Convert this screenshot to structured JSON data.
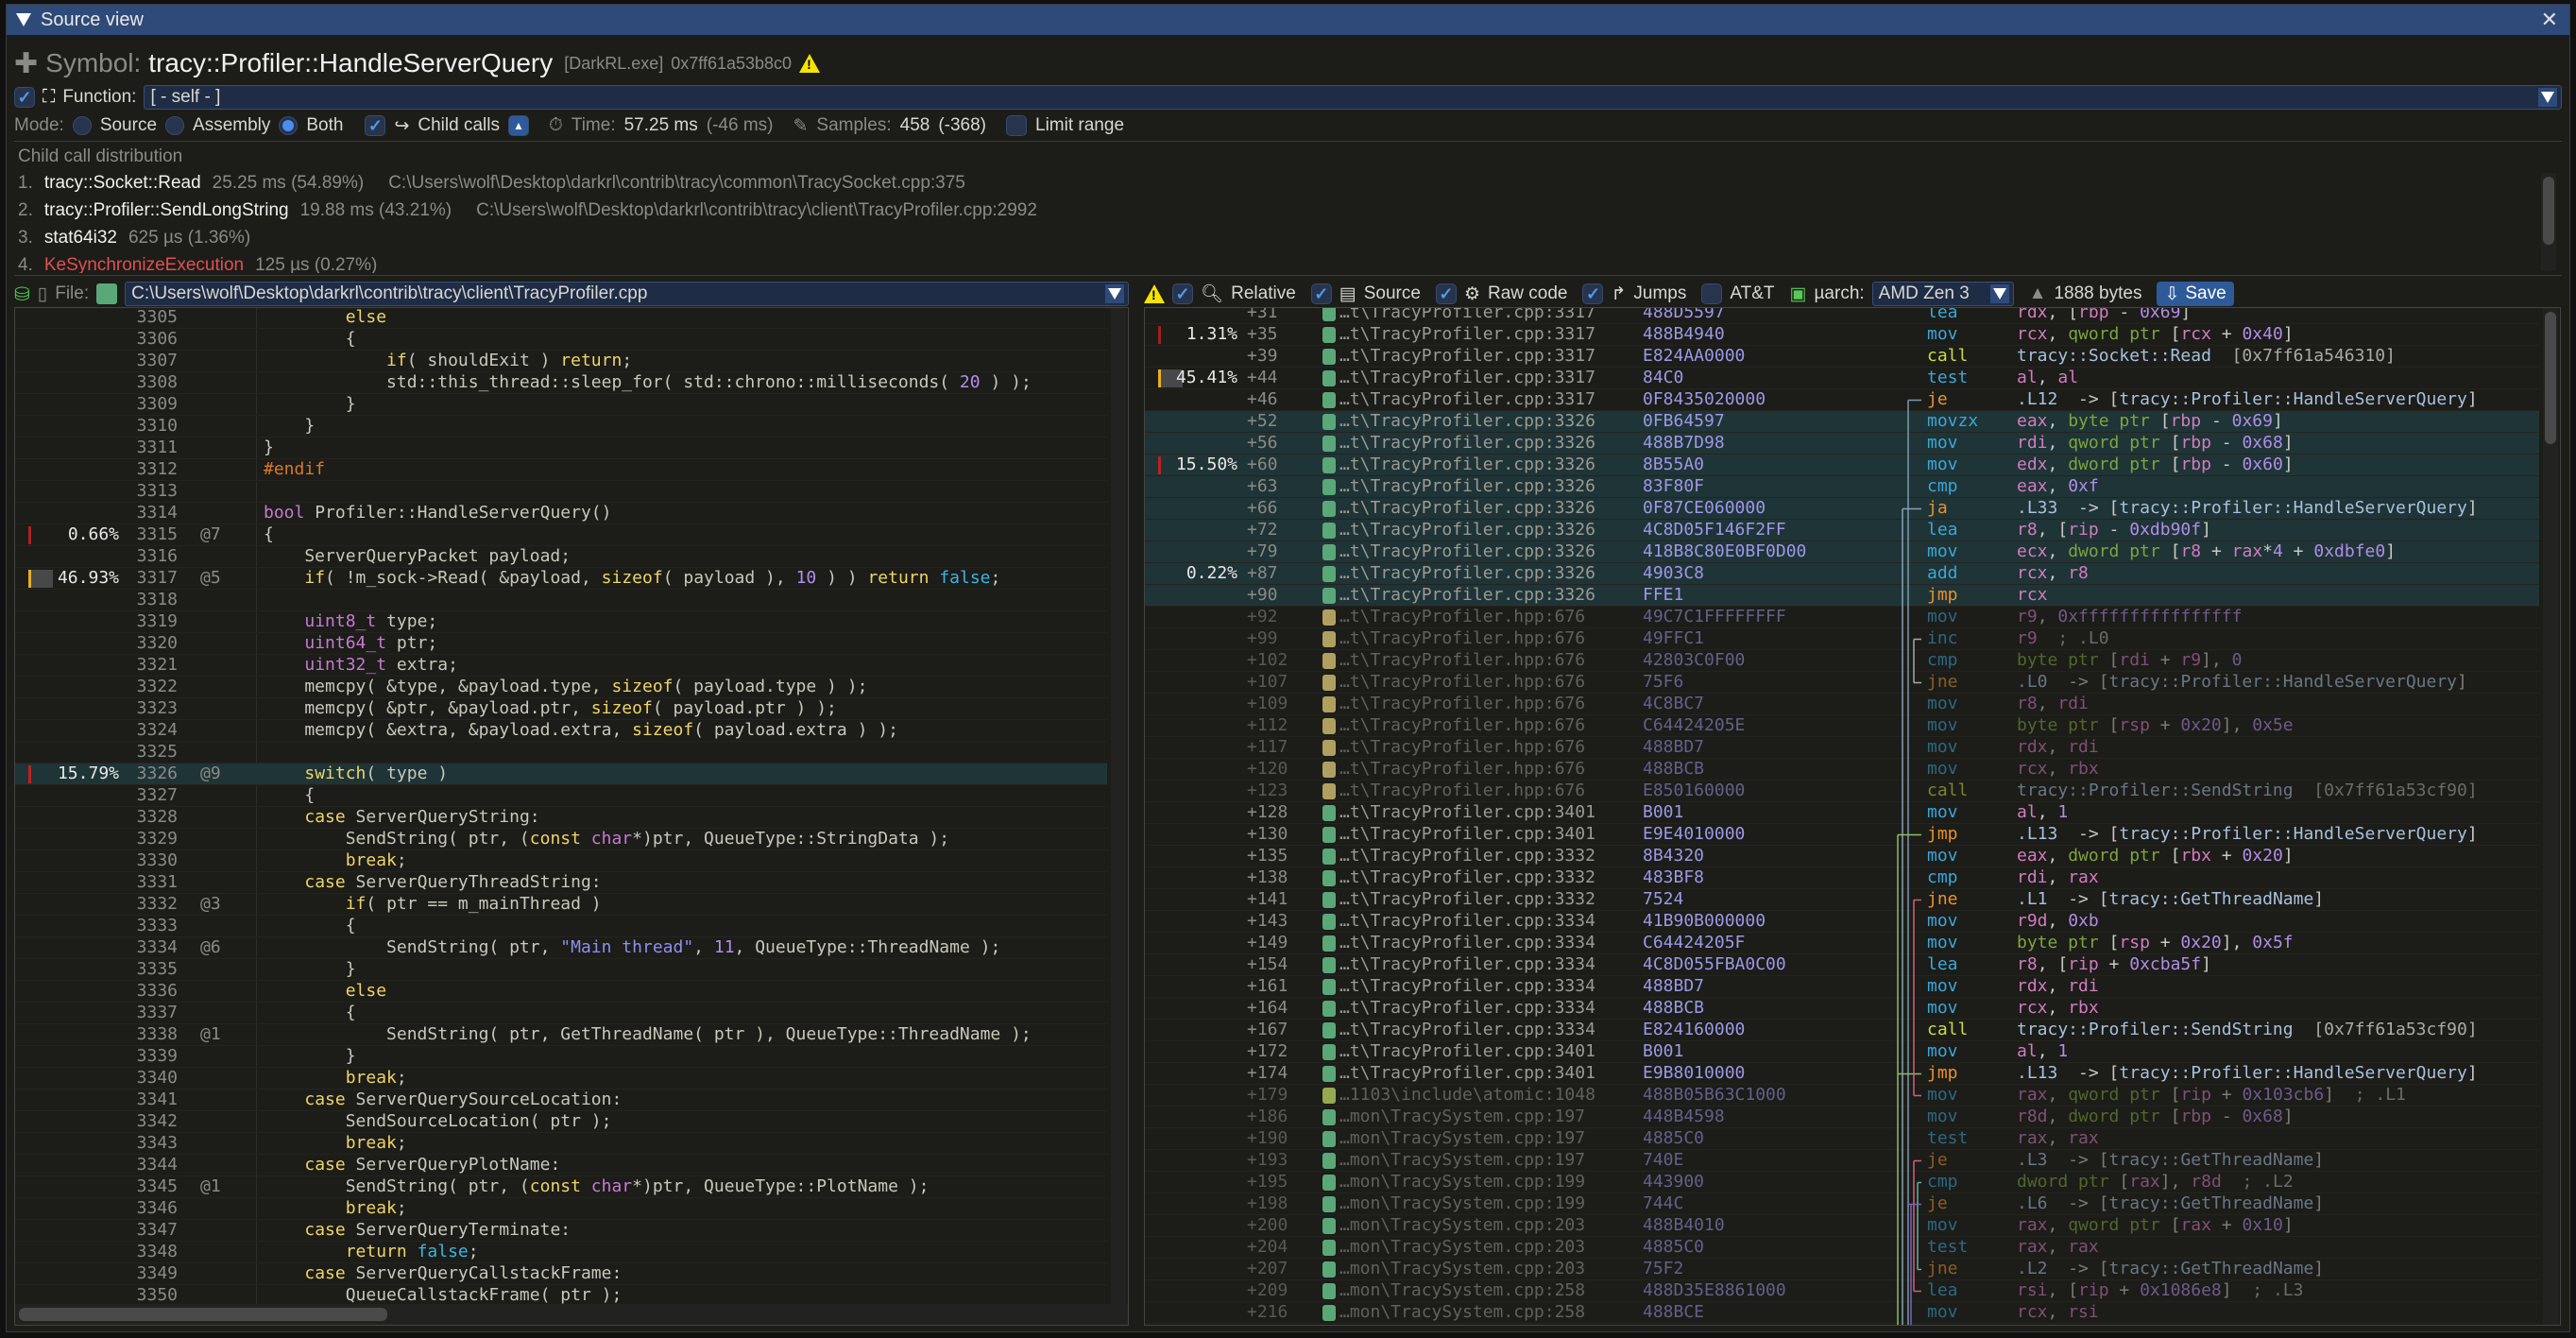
{
  "window": {
    "title": "Source view"
  },
  "symbol": {
    "label": "Symbol:",
    "name": "tracy::Profiler::HandleServerQuery",
    "image": "[DarkRL.exe]",
    "address": "0x7ff61a53b8c0",
    "icon": "puzzle-icon"
  },
  "function": {
    "checked": true,
    "label": "Function:",
    "value": "[ - self - ]"
  },
  "mode": {
    "label": "Mode:",
    "options": [
      "Source",
      "Assembly",
      "Both"
    ],
    "selected": "Both",
    "child_calls_label": "Child calls",
    "child_calls_checked": true,
    "time_label": "Time:",
    "time_value": "57.25 ms",
    "time_delta": "(-46 ms)",
    "samples_label": "Samples:",
    "samples_value": "458",
    "samples_delta": "(-368)",
    "limit_range_label": "Limit range",
    "limit_range_checked": false
  },
  "child_calls": {
    "title": "Child call distribution",
    "items": [
      {
        "idx": "1.",
        "name": "tracy::Socket::Read",
        "stats": "25.25 ms (54.89%)",
        "path": "C:\\Users\\wolf\\Desktop\\darkrl\\contrib\\tracy\\common\\TracySocket.cpp:375"
      },
      {
        "idx": "2.",
        "name": "tracy::Profiler::SendLongString",
        "stats": "19.88 ms (43.21%)",
        "path": "C:\\Users\\wolf\\Desktop\\darkrl\\contrib\\tracy\\client\\TracyProfiler.cpp:2992"
      },
      {
        "idx": "3.",
        "name": "stat64i32",
        "stats": "625 µs (1.36%)",
        "path": ""
      },
      {
        "idx": "4.",
        "name": "KeSynchronizeExecution",
        "stats": "125 µs (0.27%)",
        "path": "",
        "color": "#e05050"
      }
    ]
  },
  "source": {
    "file_label": "File:",
    "file_path": "C:\\Users\\wolf\\Desktop\\darkrl\\contrib\\tracy\\client\\TracyProfiler.cpp",
    "file_color": "#5aa878",
    "lines": [
      {
        "n": "3305",
        "code": "        else"
      },
      {
        "n": "3306",
        "code": "        {"
      },
      {
        "n": "3307",
        "code": "            if( shouldExit ) return;"
      },
      {
        "n": "3308",
        "code": "            std::this_thread::sleep_for( std::chrono::milliseconds( 20 ) );"
      },
      {
        "n": "3309",
        "code": "        }"
      },
      {
        "n": "3310",
        "code": "    }"
      },
      {
        "n": "3311",
        "code": "}"
      },
      {
        "n": "3312",
        "code": "#endif"
      },
      {
        "n": "3313",
        "code": ""
      },
      {
        "n": "3314",
        "code": "bool Profiler::HandleServerQuery()"
      },
      {
        "n": "3315",
        "code": "{",
        "pct": "0.66%",
        "pval": 0.66,
        "at": "@7",
        "bar": "#b02020"
      },
      {
        "n": "3316",
        "code": "    ServerQueryPacket payload;"
      },
      {
        "n": "3317",
        "code": "    if( !m_sock->Read( &payload, sizeof( payload ), 10 ) ) return false;",
        "pct": "46.93%",
        "pval": 46.93,
        "at": "@5",
        "bar": "#e8b020"
      },
      {
        "n": "3318",
        "code": ""
      },
      {
        "n": "3319",
        "code": "    uint8_t type;"
      },
      {
        "n": "3320",
        "code": "    uint64_t ptr;"
      },
      {
        "n": "3321",
        "code": "    uint32_t extra;"
      },
      {
        "n": "3322",
        "code": "    memcpy( &type, &payload.type, sizeof( payload.type ) );"
      },
      {
        "n": "3323",
        "code": "    memcpy( &ptr, &payload.ptr, sizeof( payload.ptr ) );"
      },
      {
        "n": "3324",
        "code": "    memcpy( &extra, &payload.extra, sizeof( payload.extra ) );"
      },
      {
        "n": "3325",
        "code": ""
      },
      {
        "n": "3326",
        "code": "    switch( type )",
        "pct": "15.79%",
        "pval": 15.79,
        "at": "@9",
        "bar": "#c02020",
        "highlight": true
      },
      {
        "n": "3327",
        "code": "    {"
      },
      {
        "n": "3328",
        "code": "    case ServerQueryString:"
      },
      {
        "n": "3329",
        "code": "        SendString( ptr, (const char*)ptr, QueueType::StringData );"
      },
      {
        "n": "3330",
        "code": "        break;"
      },
      {
        "n": "3331",
        "code": "    case ServerQueryThreadString:"
      },
      {
        "n": "3332",
        "code": "        if( ptr == m_mainThread )",
        "at": "@3"
      },
      {
        "n": "3333",
        "code": "        {"
      },
      {
        "n": "3334",
        "code": "            SendString( ptr, \"Main thread\", 11, QueueType::ThreadName );",
        "at": "@6"
      },
      {
        "n": "3335",
        "code": "        }"
      },
      {
        "n": "3336",
        "code": "        else"
      },
      {
        "n": "3337",
        "code": "        {"
      },
      {
        "n": "3338",
        "code": "            SendString( ptr, GetThreadName( ptr ), QueueType::ThreadName );",
        "at": "@1"
      },
      {
        "n": "3339",
        "code": "        }"
      },
      {
        "n": "3340",
        "code": "        break;"
      },
      {
        "n": "3341",
        "code": "    case ServerQuerySourceLocation:"
      },
      {
        "n": "3342",
        "code": "        SendSourceLocation( ptr );"
      },
      {
        "n": "3343",
        "code": "        break;"
      },
      {
        "n": "3344",
        "code": "    case ServerQueryPlotName:"
      },
      {
        "n": "3345",
        "code": "        SendString( ptr, (const char*)ptr, QueueType::PlotName );",
        "at": "@1"
      },
      {
        "n": "3346",
        "code": "        break;"
      },
      {
        "n": "3347",
        "code": "    case ServerQueryTerminate:"
      },
      {
        "n": "3348",
        "code": "        return false;"
      },
      {
        "n": "3349",
        "code": "    case ServerQueryCallstackFrame:"
      },
      {
        "n": "3350",
        "code": "        QueueCallstackFrame( ptr );"
      }
    ]
  },
  "asm_toolbar": {
    "relative_label": "Relative",
    "relative_checked": true,
    "source_label": "Source",
    "source_checked": true,
    "raw_code_label": "Raw code",
    "raw_code_checked": true,
    "jumps_label": "Jumps",
    "jumps_checked": true,
    "att_label": "AT&T",
    "att_checked": false,
    "uarch_label": "µarch:",
    "uarch_value": "AMD Zen 3",
    "size": "1888 bytes",
    "save_label": "Save"
  },
  "asm": {
    "rows": [
      {
        "off": "+31",
        "file": "…t\\TracyProfiler.cpp:3317",
        "fc": "#5aa878",
        "hex": "488D5597",
        "mn": "lea",
        "op": "rdx, [rbp - 0x69]"
      },
      {
        "off": "+35",
        "pct": "1.31%",
        "bar": "#a02020",
        "file": "…t\\TracyProfiler.cpp:3317",
        "fc": "#5aa878",
        "hex": "488B4940",
        "mn": "mov",
        "op": "rcx, qword ptr [rcx + 0x40]"
      },
      {
        "off": "+39",
        "file": "…t\\TracyProfiler.cpp:3317",
        "fc": "#5aa878",
        "hex": "E824AA0000",
        "mn": "call",
        "op": "tracy::Socket::Read  [0x7ff61a546310]"
      },
      {
        "off": "+44",
        "pct": "45.41%",
        "pval": 45.41,
        "bar": "#e8b020",
        "file": "…t\\TracyProfiler.cpp:3317",
        "fc": "#5aa878",
        "hex": "84C0",
        "mn": "test",
        "op": "al, al"
      },
      {
        "off": "+46",
        "file": "…t\\TracyProfiler.cpp:3317",
        "fc": "#5aa878",
        "hex": "0F8435020000",
        "mn": "je",
        "op": ".L12  -> [tracy::Profiler::HandleServerQuery]"
      },
      {
        "off": "+52",
        "file": "…t\\TracyProfiler.cpp:3326",
        "fc": "#5aa878",
        "hex": "0FB64597",
        "mn": "movzx",
        "op": "eax, byte ptr [rbp - 0x69]",
        "hl": true
      },
      {
        "off": "+56",
        "file": "…t\\TracyProfiler.cpp:3326",
        "fc": "#5aa878",
        "hex": "488B7D98",
        "mn": "mov",
        "op": "rdi, qword ptr [rbp - 0x68]",
        "hl": true
      },
      {
        "off": "+60",
        "pct": "15.50%",
        "pval": 15.5,
        "bar": "#c02020",
        "file": "…t\\TracyProfiler.cpp:3326",
        "fc": "#5aa878",
        "hex": "8B55A0",
        "mn": "mov",
        "op": "edx, dword ptr [rbp - 0x60]",
        "hl": true
      },
      {
        "off": "+63",
        "file": "…t\\TracyProfiler.cpp:3326",
        "fc": "#5aa878",
        "hex": "83F80F",
        "mn": "cmp",
        "op": "eax, 0xf",
        "hl": true
      },
      {
        "off": "+66",
        "file": "…t\\TracyProfiler.cpp:3326",
        "fc": "#5aa878",
        "hex": "0F87CE060000",
        "mn": "ja",
        "op": ".L33  -> [tracy::Profiler::HandleServerQuery]",
        "hl": true
      },
      {
        "off": "+72",
        "file": "…t\\TracyProfiler.cpp:3326",
        "fc": "#5aa878",
        "hex": "4C8D05F146F2FF",
        "mn": "lea",
        "op": "r8, [rip - 0xdb90f]",
        "hl": true
      },
      {
        "off": "+79",
        "file": "…t\\TracyProfiler.cpp:3326",
        "fc": "#5aa878",
        "hex": "418B8C80E0BF0D00",
        "mn": "mov",
        "op": "ecx, dword ptr [r8 + rax*4 + 0xdbfe0]",
        "hl": true
      },
      {
        "off": "+87",
        "pct": "0.22%",
        "file": "…t\\TracyProfiler.cpp:3326",
        "fc": "#5aa878",
        "hex": "4903C8",
        "mn": "add",
        "op": "rcx, r8",
        "hl": true
      },
      {
        "off": "+90",
        "file": "…t\\TracyProfiler.cpp:3326",
        "fc": "#5aa878",
        "hex": "FFE1",
        "mn": "jmp",
        "op": "rcx",
        "hl": true
      },
      {
        "off": "+92",
        "file": "…t\\TracyProfiler.hpp:676",
        "fc": "#b0a060",
        "hex": "49C7C1FFFFFFFF",
        "mn": "mov",
        "op": "r9, 0xffffffffffffffff",
        "dim": true
      },
      {
        "off": "+99",
        "file": "…t\\TracyProfiler.hpp:676",
        "fc": "#b0a060",
        "hex": "49FFC1",
        "mn": "inc",
        "op": "r9  ; .L0",
        "dim": true
      },
      {
        "off": "+102",
        "file": "…t\\TracyProfiler.hpp:676",
        "fc": "#b0a060",
        "hex": "42803C0F00",
        "mn": "cmp",
        "op": "byte ptr [rdi + r9], 0",
        "dim": true
      },
      {
        "off": "+107",
        "file": "…t\\TracyProfiler.hpp:676",
        "fc": "#b0a060",
        "hex": "75F6",
        "mn": "jne",
        "op": ".L0  -> [tracy::Profiler::HandleServerQuery]",
        "dim": true
      },
      {
        "off": "+109",
        "file": "…t\\TracyProfiler.hpp:676",
        "fc": "#b0a060",
        "hex": "4C8BC7",
        "mn": "mov",
        "op": "r8, rdi",
        "dim": true
      },
      {
        "off": "+112",
        "file": "…t\\TracyProfiler.hpp:676",
        "fc": "#b0a060",
        "hex": "C64424205E",
        "mn": "mov",
        "op": "byte ptr [rsp + 0x20], 0x5e",
        "dim": true
      },
      {
        "off": "+117",
        "file": "…t\\TracyProfiler.hpp:676",
        "fc": "#b0a060",
        "hex": "488BD7",
        "mn": "mov",
        "op": "rdx, rdi",
        "dim": true
      },
      {
        "off": "+120",
        "file": "…t\\TracyProfiler.hpp:676",
        "fc": "#b0a060",
        "hex": "488BCB",
        "mn": "mov",
        "op": "rcx, rbx",
        "dim": true
      },
      {
        "off": "+123",
        "file": "…t\\TracyProfiler.hpp:676",
        "fc": "#b0a060",
        "hex": "E850160000",
        "mn": "call",
        "op": "tracy::Profiler::SendString  [0x7ff61a53cf90]",
        "dim": true
      },
      {
        "off": "+128",
        "file": "…t\\TracyProfiler.cpp:3401",
        "fc": "#5aa878",
        "hex": "B001",
        "mn": "mov",
        "op": "al, 1"
      },
      {
        "off": "+130",
        "file": "…t\\TracyProfiler.cpp:3401",
        "fc": "#5aa878",
        "hex": "E9E4010000",
        "mn": "jmp",
        "op": ".L13  -> [tracy::Profiler::HandleServerQuery]"
      },
      {
        "off": "+135",
        "file": "…t\\TracyProfiler.cpp:3332",
        "fc": "#5aa878",
        "hex": "8B4320",
        "mn": "mov",
        "op": "eax, dword ptr [rbx + 0x20]"
      },
      {
        "off": "+138",
        "file": "…t\\TracyProfiler.cpp:3332",
        "fc": "#5aa878",
        "hex": "483BF8",
        "mn": "cmp",
        "op": "rdi, rax"
      },
      {
        "off": "+141",
        "file": "…t\\TracyProfiler.cpp:3332",
        "fc": "#5aa878",
        "hex": "7524",
        "mn": "jne",
        "op": ".L1  -> [tracy::GetThreadName]"
      },
      {
        "off": "+143",
        "file": "…t\\TracyProfiler.cpp:3334",
        "fc": "#5aa878",
        "hex": "41B90B000000",
        "mn": "mov",
        "op": "r9d, 0xb"
      },
      {
        "off": "+149",
        "file": "…t\\TracyProfiler.cpp:3334",
        "fc": "#5aa878",
        "hex": "C64424205F",
        "mn": "mov",
        "op": "byte ptr [rsp + 0x20], 0x5f"
      },
      {
        "off": "+154",
        "file": "…t\\TracyProfiler.cpp:3334",
        "fc": "#5aa878",
        "hex": "4C8D055FBA0C00",
        "mn": "lea",
        "op": "r8, [rip + 0xcba5f]"
      },
      {
        "off": "+161",
        "file": "…t\\TracyProfiler.cpp:3334",
        "fc": "#5aa878",
        "hex": "488BD7",
        "mn": "mov",
        "op": "rdx, rdi"
      },
      {
        "off": "+164",
        "file": "…t\\TracyProfiler.cpp:3334",
        "fc": "#5aa878",
        "hex": "488BCB",
        "mn": "mov",
        "op": "rcx, rbx"
      },
      {
        "off": "+167",
        "file": "…t\\TracyProfiler.cpp:3334",
        "fc": "#5aa878",
        "hex": "E824160000",
        "mn": "call",
        "op": "tracy::Profiler::SendString  [0x7ff61a53cf90]"
      },
      {
        "off": "+172",
        "file": "…t\\TracyProfiler.cpp:3401",
        "fc": "#5aa878",
        "hex": "B001",
        "mn": "mov",
        "op": "al, 1"
      },
      {
        "off": "+174",
        "file": "…t\\TracyProfiler.cpp:3401",
        "fc": "#5aa878",
        "hex": "E9B8010000",
        "mn": "jmp",
        "op": ".L13  -> [tracy::Profiler::HandleServerQuery]"
      },
      {
        "off": "+179",
        "file": "…1103\\include\\atomic:1048",
        "fc": "#98a850",
        "hex": "488B05B63C1000",
        "mn": "mov",
        "op": "rax, qword ptr [rip + 0x103cb6]  ; .L1",
        "dim": true
      },
      {
        "off": "+186",
        "file": "…mon\\TracySystem.cpp:197",
        "fc": "#5aa878",
        "hex": "448B4598",
        "mn": "mov",
        "op": "r8d, dword ptr [rbp - 0x68]",
        "dim": true
      },
      {
        "off": "+190",
        "file": "…mon\\TracySystem.cpp:197",
        "fc": "#5aa878",
        "hex": "4885C0",
        "mn": "test",
        "op": "rax, rax",
        "dim": true
      },
      {
        "off": "+193",
        "file": "…mon\\TracySystem.cpp:197",
        "fc": "#5aa878",
        "hex": "740E",
        "mn": "je",
        "op": ".L3  -> [tracy::GetThreadName]",
        "dim": true
      },
      {
        "off": "+195",
        "file": "…mon\\TracySystem.cpp:199",
        "fc": "#5aa878",
        "hex": "443900",
        "mn": "cmp",
        "op": "dword ptr [rax], r8d  ; .L2",
        "dim": true
      },
      {
        "off": "+198",
        "file": "…mon\\TracySystem.cpp:199",
        "fc": "#5aa878",
        "hex": "744C",
        "mn": "je",
        "op": ".L6  -> [tracy::GetThreadName]",
        "dim": true
      },
      {
        "off": "+200",
        "file": "…mon\\TracySystem.cpp:203",
        "fc": "#5aa878",
        "hex": "488B4010",
        "mn": "mov",
        "op": "rax, qword ptr [rax + 0x10]",
        "dim": true
      },
      {
        "off": "+204",
        "file": "…mon\\TracySystem.cpp:203",
        "fc": "#5aa878",
        "hex": "4885C0",
        "mn": "test",
        "op": "rax, rax",
        "dim": true
      },
      {
        "off": "+207",
        "file": "…mon\\TracySystem.cpp:203",
        "fc": "#5aa878",
        "hex": "75F2",
        "mn": "jne",
        "op": ".L2  -> [tracy::GetThreadName]",
        "dim": true
      },
      {
        "off": "+209",
        "file": "…mon\\TracySystem.cpp:258",
        "fc": "#5aa878",
        "hex": "488D35E8861000",
        "mn": "lea",
        "op": "rsi, [rip + 0x1086e8]  ; .L3",
        "dim": true
      },
      {
        "off": "+216",
        "file": "…mon\\TracySystem.cpp:258",
        "fc": "#5aa878",
        "hex": "488BCE",
        "mn": "mov",
        "op": "rcx, rsi",
        "dim": true
      }
    ]
  },
  "colors": {
    "title_bar": "#2e4a78",
    "highlight_row": "#1f3436",
    "warning": "#f4e400",
    "accent": "#4a8ff0"
  }
}
